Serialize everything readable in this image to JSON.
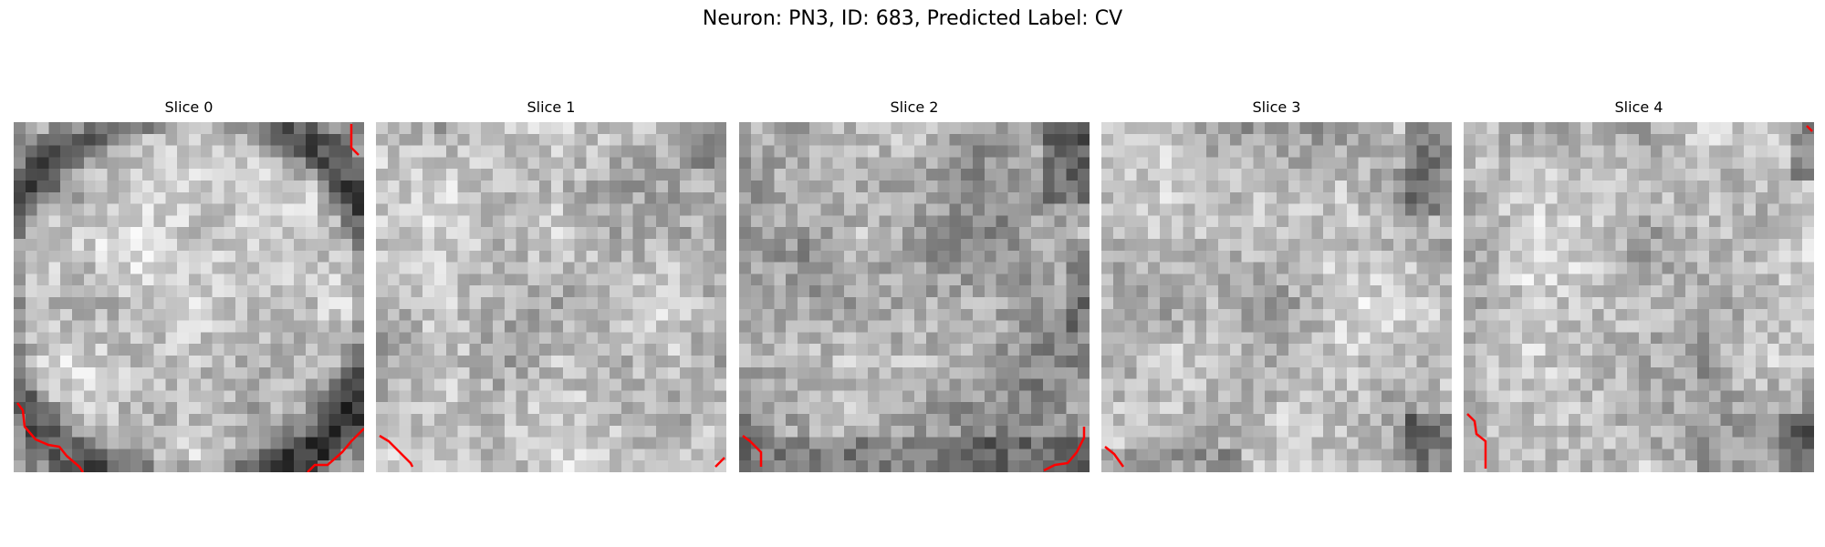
{
  "title": "Neuron: PN3, ID: 683, Predicted Label: CV",
  "colors": {
    "contour": "#ff0000",
    "background": "#ffffff"
  },
  "slices": [
    {
      "label": "Slice 0",
      "pattern": "ring"
    },
    {
      "label": "Slice 1",
      "pattern": "uniform-light"
    },
    {
      "label": "Slice 2",
      "pattern": "mottled-dark-corners"
    },
    {
      "label": "Slice 3",
      "pattern": "mottled-light"
    },
    {
      "label": "Slice 4",
      "pattern": "mottled-light-dark-corner"
    }
  ]
}
